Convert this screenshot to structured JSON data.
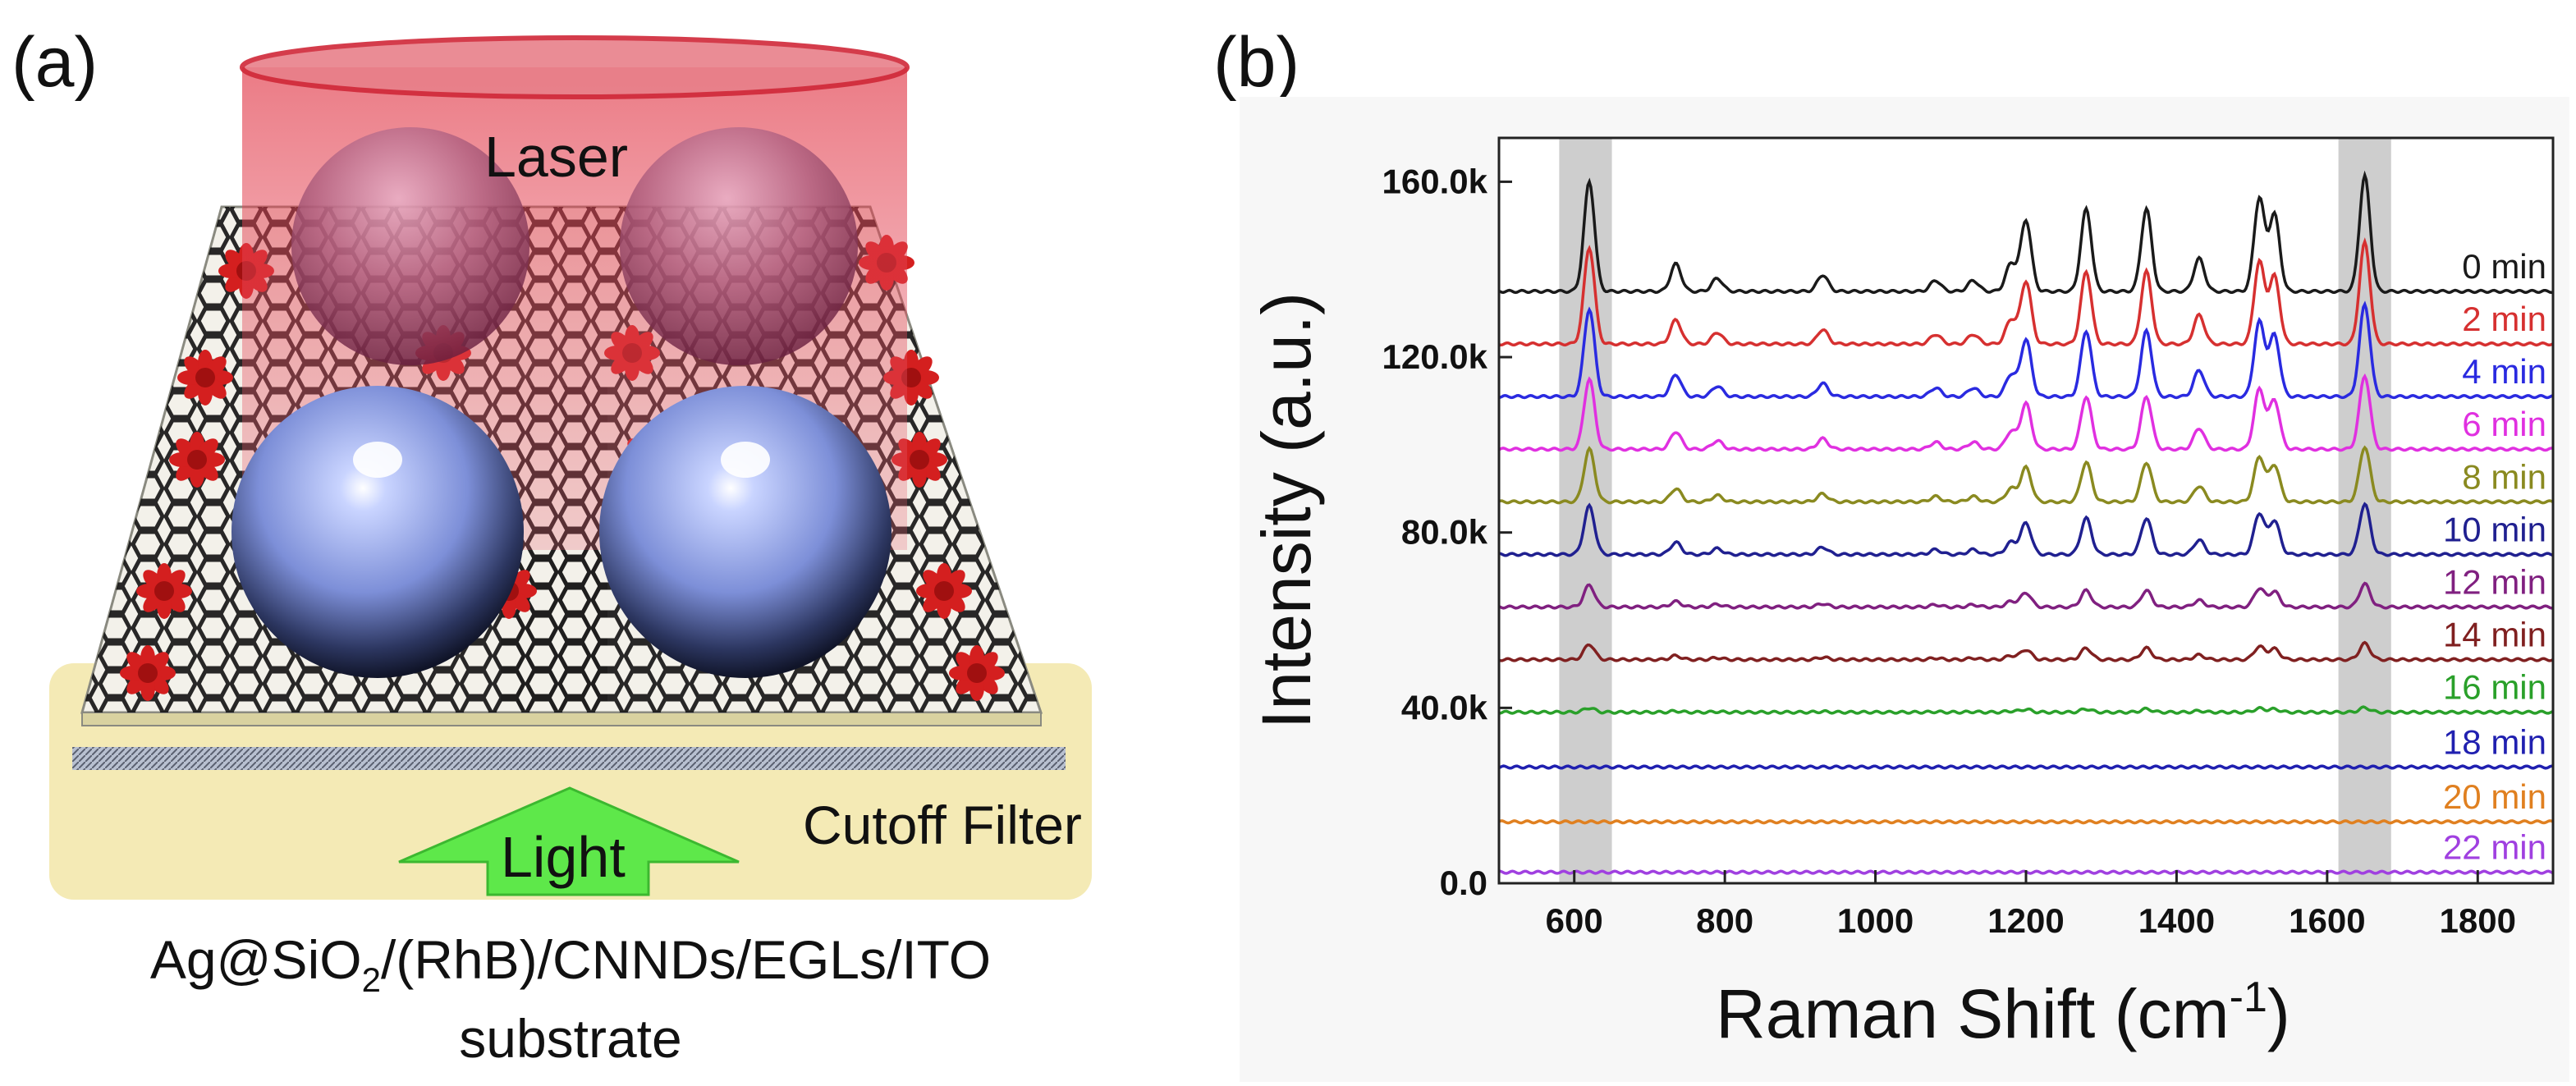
{
  "panels": {
    "a": {
      "label": "(a)",
      "laser_label": "Laser",
      "light_label": "Light",
      "filter_label": "Cutoff Filter",
      "caption": {
        "line1_prefix": "Ag@SiO",
        "line1_sub": "2",
        "line1_suffix": "/(RhB)/CNNDs/EGLs/ITO",
        "line2": "substrate"
      },
      "colors": {
        "laser": "#d94a5a",
        "filter": "#f2e6a8",
        "arrow": "#5ee84a",
        "flower": "#d41f1f",
        "sphere_blue": "#8ca0e8",
        "sphere_red": "#b04060"
      }
    },
    "b": {
      "label": "(b)"
    }
  },
  "chart_data": {
    "type": "line",
    "title": "",
    "xlabel": "Raman Shift (cm⁻¹)",
    "xlabel_main": "Raman Shift (cm",
    "xlabel_sup": "-1",
    "xlabel_close": ")",
    "ylabel": "Intensity (a.u.)",
    "xlim": [
      500,
      1900
    ],
    "ylim": [
      0,
      170000
    ],
    "xticks": [
      600,
      800,
      1000,
      1200,
      1400,
      1600,
      1800
    ],
    "yticks": [
      {
        "value": 0,
        "label": "0.0"
      },
      {
        "value": 40000,
        "label": "40.0k"
      },
      {
        "value": 80000,
        "label": "80.0k"
      },
      {
        "value": 120000,
        "label": "120.0k"
      },
      {
        "value": 160000,
        "label": "160.0k"
      }
    ],
    "highlight_bands": [
      [
        580,
        650
      ],
      [
        1615,
        1685
      ]
    ],
    "peak_positions": [
      620,
      735,
      1200,
      1280,
      1360,
      1430,
      1510,
      1530,
      1650
    ],
    "series": [
      {
        "name": "0 min",
        "color": "#1a1a1a",
        "baseline": 135000,
        "peak_620": 25000
      },
      {
        "name": "2 min",
        "color": "#d63030",
        "baseline": 123000,
        "peak_620": 22000
      },
      {
        "name": "4 min",
        "color": "#2a2ae0",
        "baseline": 111000,
        "peak_620": 20000
      },
      {
        "name": "6 min",
        "color": "#e030e0",
        "baseline": 99000,
        "peak_620": 16000
      },
      {
        "name": "8 min",
        "color": "#8a8a20",
        "baseline": 87000,
        "peak_620": 12000
      },
      {
        "name": "10 min",
        "color": "#202090",
        "baseline": 75000,
        "peak_620": 11000
      },
      {
        "name": "12 min",
        "color": "#802080",
        "baseline": 63000,
        "peak_620": 5000
      },
      {
        "name": "14 min",
        "color": "#802020",
        "baseline": 51000,
        "peak_620": 3500
      },
      {
        "name": "16 min",
        "color": "#2aa02a",
        "baseline": 39000,
        "peak_620": 1000
      },
      {
        "name": "18 min",
        "color": "#2020b0",
        "baseline": 26500,
        "peak_620": 0
      },
      {
        "name": "20 min",
        "color": "#e08020",
        "baseline": 14000,
        "peak_620": 0
      },
      {
        "name": "22 min",
        "color": "#a040e0",
        "baseline": 2500,
        "peak_620": 0
      }
    ]
  }
}
